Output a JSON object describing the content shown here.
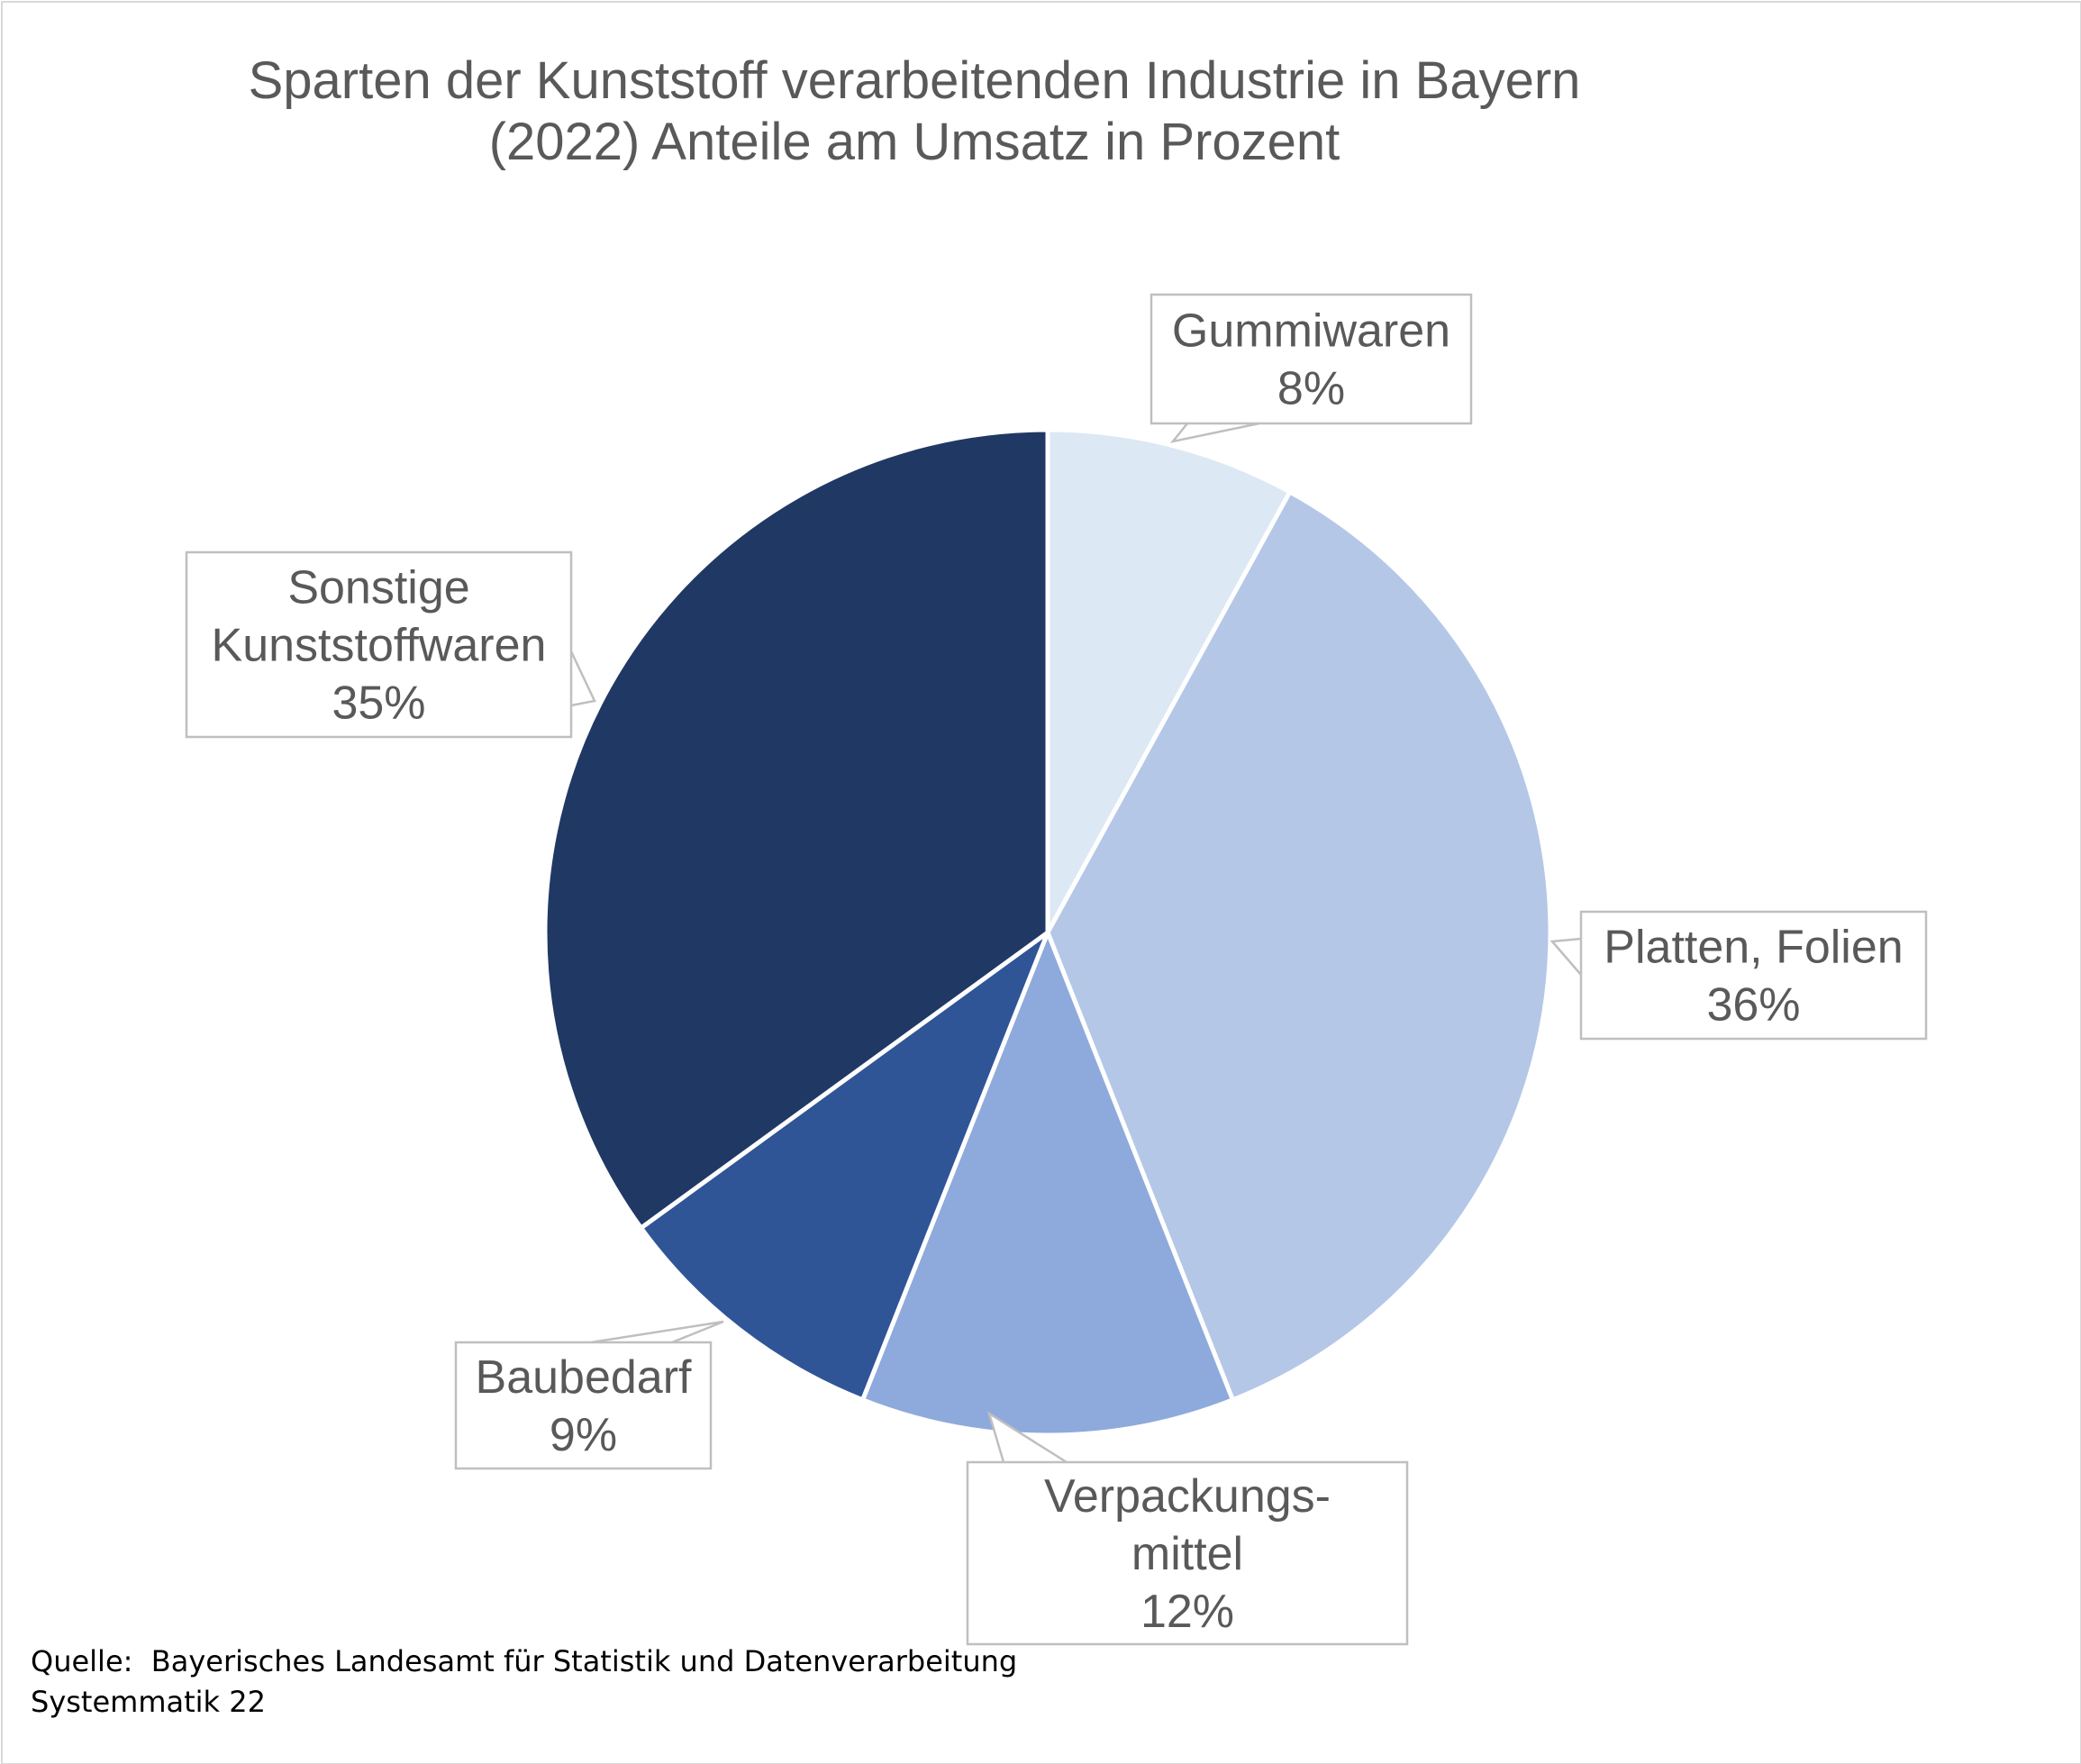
{
  "chart_data": {
    "type": "pie",
    "title_lines": [
      "Sparten der Kunststoff verarbeitenden Industrie in Bayern",
      "(2022) Anteile am Umsatz in Prozent"
    ],
    "slices": [
      {
        "label_lines": [
          "Gummiwaren"
        ],
        "value": 8,
        "value_label": "8%",
        "color": "#dde8f5"
      },
      {
        "label_lines": [
          "Platten, Folien"
        ],
        "value": 36,
        "value_label": "36%",
        "color": "#b4c7e7"
      },
      {
        "label_lines": [
          "Verpackungs-",
          "mittel"
        ],
        "value": 12,
        "value_label": "12%",
        "color": "#8eaadc"
      },
      {
        "label_lines": [
          "Baubedarf"
        ],
        "value": 9,
        "value_label": "9%",
        "color": "#2f5597"
      },
      {
        "label_lines": [
          "Sonstige",
          "Kunststoffwaren"
        ],
        "value": 35,
        "value_label": "35%",
        "color": "#203864"
      }
    ]
  },
  "source_lines": [
    "Quelle:  Bayerisches Landesamt für Statistik und Datenverarbeitung",
    "Systemmatik 22"
  ]
}
